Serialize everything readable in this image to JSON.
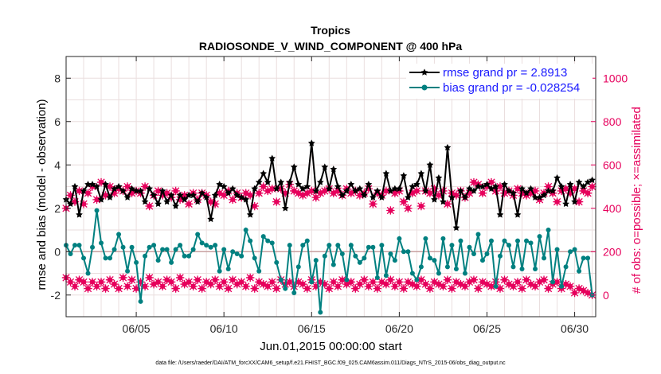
{
  "chart_data": {
    "type": "line",
    "title": "Tropics",
    "subtitle": "RADIOSONDE_V_WIND_COMPONENT @ 400 hPa",
    "xlabel": "Jun.01,2015 00:00:00 start",
    "ylabel_left": "rmse and bias (model - observation)",
    "ylabel_right": "# of obs: o=possible; ×=assimilated",
    "footnote": "data file: /Users/raeder/DAI/ATM_forcXX/CAM6_setup/f.e21.FHIST_BGC.f09_025.CAM6assim.011/Diags_NTrS_2015-06/obs_diag_output.nc",
    "xlim": [
      1.0,
      31.2
    ],
    "ylim_left": [
      -3,
      9
    ],
    "ylim_right": [
      -100,
      1100
    ],
    "x_ticks": [
      5,
      10,
      15,
      20,
      25,
      30
    ],
    "x_tick_labels": [
      "06/05",
      "06/10",
      "06/15",
      "06/20",
      "06/25",
      "06/30"
    ],
    "y_ticks_left": [
      -2,
      0,
      2,
      4,
      6,
      8
    ],
    "y_ticks_right": [
      0,
      200,
      400,
      600,
      800,
      1000
    ],
    "zero_line": 0,
    "grid": true,
    "legend_position": "top-right",
    "x": [
      1.0,
      1.25,
      1.5,
      1.75,
      2.0,
      2.25,
      2.5,
      2.75,
      3.0,
      3.25,
      3.5,
      3.75,
      4.0,
      4.25,
      4.5,
      4.75,
      5.0,
      5.25,
      5.5,
      5.75,
      6.0,
      6.25,
      6.5,
      6.75,
      7.0,
      7.25,
      7.5,
      7.75,
      8.0,
      8.25,
      8.5,
      8.75,
      9.0,
      9.25,
      9.5,
      9.75,
      10.0,
      10.25,
      10.5,
      10.75,
      11.0,
      11.25,
      11.5,
      11.75,
      12.0,
      12.25,
      12.5,
      12.75,
      13.0,
      13.25,
      13.5,
      13.75,
      14.0,
      14.25,
      14.5,
      14.75,
      15.0,
      15.25,
      15.5,
      15.75,
      16.0,
      16.25,
      16.5,
      16.75,
      17.0,
      17.25,
      17.5,
      17.75,
      18.0,
      18.25,
      18.5,
      18.75,
      19.0,
      19.25,
      19.5,
      19.75,
      20.0,
      20.25,
      20.5,
      20.75,
      21.0,
      21.25,
      21.5,
      21.75,
      22.0,
      22.25,
      22.5,
      22.75,
      23.0,
      23.25,
      23.5,
      23.75,
      24.0,
      24.25,
      24.5,
      24.75,
      25.0,
      25.25,
      25.5,
      25.75,
      26.0,
      26.25,
      26.5,
      26.75,
      27.0,
      27.25,
      27.5,
      27.75,
      28.0,
      28.25,
      28.5,
      28.75,
      29.0,
      29.25,
      29.5,
      29.75,
      30.0,
      30.25,
      30.5,
      30.75,
      31.0
    ],
    "series": [
      {
        "name": "rmse grand pr = 2.8913",
        "axis": "left",
        "color": "#000000",
        "marker": "star",
        "values": [
          2.4,
          2.2,
          3.0,
          1.7,
          2.8,
          3.1,
          3.1,
          3.0,
          2.4,
          3.1,
          2.5,
          2.9,
          3.0,
          2.8,
          2.5,
          2.9,
          2.8,
          2.8,
          2.3,
          2.9,
          2.6,
          2.2,
          2.8,
          2.3,
          2.6,
          2.1,
          2.6,
          2.4,
          2.6,
          2.6,
          2.3,
          2.7,
          2.5,
          1.5,
          2.6,
          3.1,
          3.0,
          2.7,
          2.9,
          2.6,
          2.5,
          2.4,
          1.7,
          2.9,
          3.2,
          3.6,
          3.2,
          4.3,
          2.9,
          3.2,
          2.0,
          3.2,
          3.9,
          3.1,
          2.9,
          3.0,
          5.0,
          2.8,
          3.2,
          3.9,
          2.9,
          3.8,
          3.0,
          2.6,
          2.8,
          3.1,
          2.8,
          2.9,
          2.6,
          3.1,
          2.5,
          2.8,
          2.5,
          3.6,
          2.8,
          2.9,
          2.9,
          3.5,
          2.5,
          3.0,
          3.1,
          3.6,
          2.8,
          4.0,
          2.4,
          3.4,
          2.3,
          4.8,
          2.5,
          1.1,
          2.8,
          2.5,
          2.9,
          2.8,
          3.0,
          3.0,
          3.1,
          2.9,
          3.0,
          1.7,
          3.1,
          2.8,
          2.7,
          1.7,
          2.9,
          2.7,
          2.9,
          2.5,
          2.5,
          2.6,
          2.8,
          2.8,
          3.4,
          3.0,
          2.2,
          3.1,
          2.3,
          3.2,
          3.0,
          3.2,
          3.3
        ]
      },
      {
        "name": "bias grand pr = -0.028254",
        "axis": "left",
        "color": "#008080",
        "marker": "circle",
        "values": [
          0.3,
          -0.1,
          0.3,
          0.3,
          -0.3,
          -1.0,
          0.2,
          1.9,
          0.4,
          -0.3,
          -0.3,
          0.1,
          0.8,
          0.2,
          -0.9,
          0.2,
          -0.5,
          -2.3,
          -0.2,
          0.2,
          0.3,
          -0.4,
          0.1,
          0.1,
          -0.5,
          0.1,
          0.3,
          -0.2,
          -0.2,
          0.1,
          0.8,
          0.4,
          0.3,
          0.2,
          0.3,
          -0.9,
          0.1,
          -0.8,
          0.0,
          -0.1,
          -0.2,
          1.0,
          0.5,
          -0.3,
          -0.9,
          0.7,
          0.5,
          0.4,
          -0.5,
          -1.3,
          -1.7,
          0.3,
          -1.9,
          -0.7,
          0.3,
          0.5,
          -1.4,
          -0.4,
          -2.8,
          -0.2,
          0.3,
          -0.6,
          0.3,
          -0.1,
          -1.3,
          0.3,
          -0.2,
          -0.5,
          -0.3,
          0.2,
          0.2,
          -1.2,
          0.3,
          -1.1,
          -0.1,
          -0.4,
          0.6,
          0.0,
          0.0,
          -1.0,
          -1.3,
          -0.7,
          0.6,
          -0.3,
          -0.4,
          -1.0,
          0.6,
          -0.7,
          0.3,
          -0.8,
          0.5,
          -1.0,
          0.2,
          -0.1,
          0.8,
          -0.4,
          -0.1,
          0.5,
          -1.6,
          -0.2,
          0.5,
          0.3,
          -0.7,
          0.5,
          -0.8,
          0.5,
          0.4,
          -0.8,
          0.7,
          -0.3,
          1.0,
          -1.4,
          0.1,
          -1.6,
          -0.7,
          0.0,
          0.1,
          -0.9,
          -0.3,
          -0.3,
          -2.0
        ]
      },
      {
        "name": "obs possible",
        "axis": "right",
        "color": "#e6005c",
        "marker": "circle-open",
        "values": [
          400,
          460,
          430,
          480,
          420,
          470,
          500,
          440,
          520,
          460,
          500,
          470,
          490,
          480,
          500,
          470,
          480,
          470,
          500,
          410,
          460,
          480,
          460,
          470,
          450,
          480,
          440,
          460,
          420,
          470,
          440,
          470,
          460,
          430,
          420,
          470,
          460,
          480,
          440,
          470,
          450,
          470,
          460,
          410,
          470,
          500,
          480,
          490,
          430,
          490,
          470,
          510,
          480,
          470,
          460,
          470,
          480,
          450,
          470,
          480,
          490,
          470,
          480,
          460,
          490,
          470,
          480,
          460,
          470,
          490,
          420,
          470,
          460,
          480,
          390,
          470,
          480,
          430,
          400,
          470,
          480,
          410,
          480,
          470,
          490,
          460,
          480,
          420,
          470,
          460,
          480,
          450,
          470,
          520,
          510,
          470,
          500,
          520,
          480,
          500,
          470,
          480,
          460,
          490,
          470,
          460,
          470,
          480,
          440,
          470,
          500,
          470,
          430,
          480,
          490,
          470,
          490,
          430,
          480,
          470,
          500
        ]
      },
      {
        "name": "obs assimilated",
        "axis": "right",
        "color": "#e6005c",
        "marker": "x",
        "values": [
          80,
          60,
          40,
          70,
          60,
          30,
          60,
          40,
          60,
          30,
          70,
          50,
          30,
          80,
          40,
          70,
          30,
          60,
          40,
          80,
          50,
          60,
          40,
          70,
          60,
          30,
          80,
          50,
          60,
          40,
          70,
          30,
          60,
          50,
          70,
          40,
          60,
          30,
          70,
          50,
          60,
          40,
          80,
          30,
          60,
          50,
          40,
          60,
          30,
          70,
          50,
          60,
          40,
          60,
          50,
          30,
          70,
          40,
          60,
          50,
          30,
          60,
          40,
          70,
          50,
          60,
          30,
          50,
          70,
          40,
          60,
          30,
          60,
          50,
          70,
          40,
          60,
          30,
          60,
          50,
          40,
          70,
          50,
          30,
          60,
          50,
          40,
          70,
          30,
          60,
          50,
          40,
          60,
          70,
          30,
          60,
          50,
          40,
          60,
          30,
          70,
          50,
          40,
          60,
          30,
          70,
          50,
          40,
          60,
          70,
          30,
          50,
          60,
          30,
          50,
          40,
          10,
          30,
          20,
          10,
          0
        ]
      }
    ],
    "legend": {
      "rmse_label": "rmse grand pr = 2.8913",
      "bias_label": "bias grand pr = -0.028254"
    }
  }
}
